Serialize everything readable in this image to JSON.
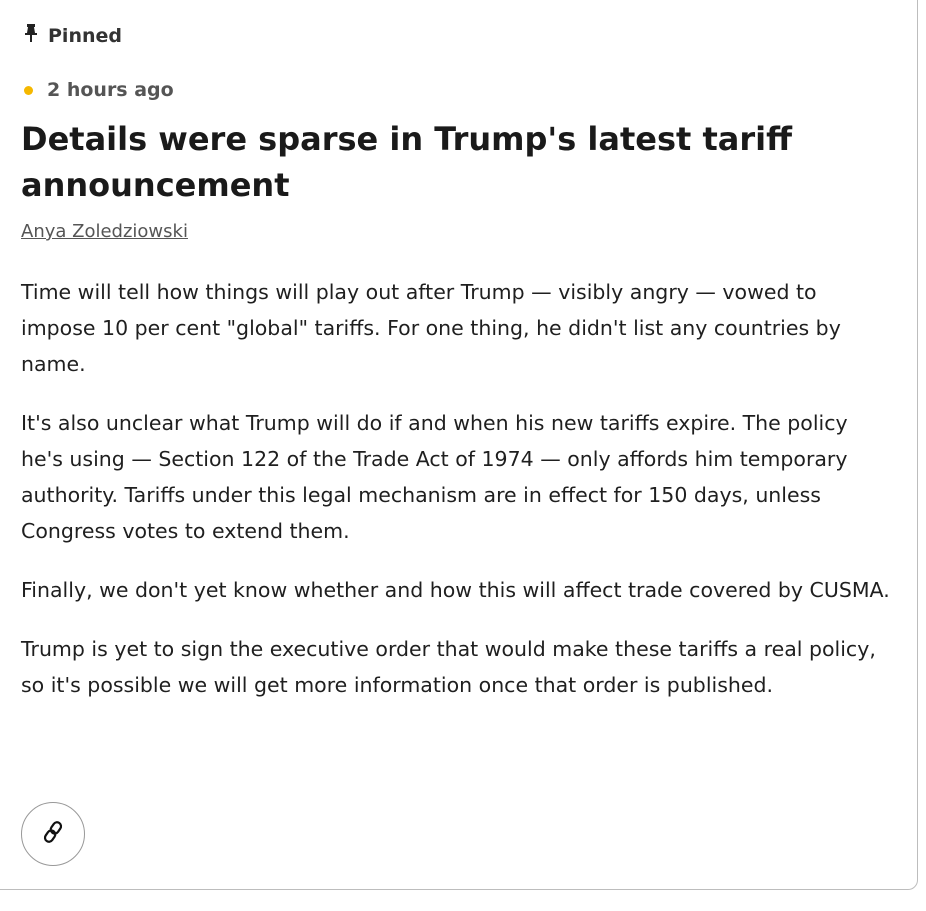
{
  "post": {
    "pinned_label": "Pinned",
    "timestamp": "2 hours ago",
    "status_dot_color": "#f5b800",
    "title": "Details were sparse in Trump's latest tariff announcement",
    "author": "Anya Zoledziowski",
    "paragraphs": [
      "Time will tell how things will play out after Trump — visibly angry — vowed to impose 10 per cent \"global\" tariffs. For one thing, he didn't list any countries by name.",
      "It's also unclear what Trump will do if and when his new tariffs expire. The policy he's using — Section 122 of the Trade Act of 1974 — only affords him temporary authority. Tariffs under this legal mechanism are in effect for 150 days, unless Congress votes to extend them.",
      "Finally, we don't yet know whether and how this will affect trade covered by CUSMA.",
      "Trump is yet to sign the executive order that would make these tariffs a real policy, so it's possible we will get more information once that order is published."
    ],
    "icons": {
      "pin": "pin-icon",
      "link": "link-icon"
    }
  }
}
